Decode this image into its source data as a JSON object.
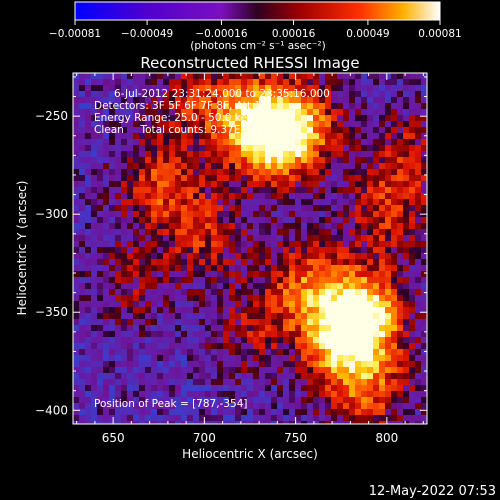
{
  "chart_data": {
    "type": "heatmap",
    "title": "Reconstructed RHESSI Image",
    "xlabel": "Heliocentric X (arcsec)",
    "ylabel": "Heliocentric Y (arcsec)",
    "xlim": [
      628,
      822
    ],
    "ylim": [
      -407,
      -228
    ],
    "x_ticks": [
      650,
      700,
      750,
      800
    ],
    "y_ticks": [
      -250,
      -300,
      -350,
      -400
    ],
    "x_tick_labels": [
      "650",
      "700",
      "750",
      "800"
    ],
    "y_tick_labels": [
      "−250",
      "−300",
      "−350",
      "−400"
    ],
    "colorbar": {
      "min": -0.00081,
      "max": 0.00081,
      "tick_values": [
        -0.00081,
        -0.00049,
        -0.00016,
        0.00016,
        0.00049,
        0.00081
      ],
      "tick_labels": [
        "−0.00081",
        "−0.00049",
        "−0.00016",
        "0.00016",
        "0.00049",
        "0.00081"
      ],
      "unit_label": "(photons cm⁻² s⁻¹ asec⁻²)"
    },
    "info_lines": [
      "6-Jul-2012 23:31:24.000 to 23:35:16.000",
      "Detectors: 3F 5F 6F 7F 8F, Att 1",
      "Energy Range: 25.0 - 50.0 keV",
      "Clean     Total counts: 9.37E+03"
    ],
    "peak_label": "Position of Peak = [787,-354]",
    "peak_position": [
      787,
      -354
    ],
    "sources": [
      {
        "x": 787,
        "y": -350,
        "amp": 1.0
      },
      {
        "x": 775,
        "y": -365,
        "amp": 0.8
      },
      {
        "x": 750,
        "y": -255,
        "amp": 0.85
      },
      {
        "x": 735,
        "y": -262,
        "amp": 0.7
      },
      {
        "x": 720,
        "y": -248,
        "amp": 0.6
      },
      {
        "x": 675,
        "y": -285,
        "amp": 0.55
      },
      {
        "x": 700,
        "y": -310,
        "amp": 0.45
      },
      {
        "x": 755,
        "y": -335,
        "amp": 0.6
      },
      {
        "x": 800,
        "y": -300,
        "amp": 0.45
      },
      {
        "x": 810,
        "y": -270,
        "amp": 0.4
      },
      {
        "x": 790,
        "y": -390,
        "amp": 0.55
      },
      {
        "x": 725,
        "y": -360,
        "amp": 0.35
      },
      {
        "x": 660,
        "y": -335,
        "amp": 0.3
      },
      {
        "x": 690,
        "y": -240,
        "amp": 0.35
      }
    ],
    "colormap": "rainbow-red-yellow"
  },
  "footer": {
    "timestamp": "12-May-2022 07:53"
  }
}
